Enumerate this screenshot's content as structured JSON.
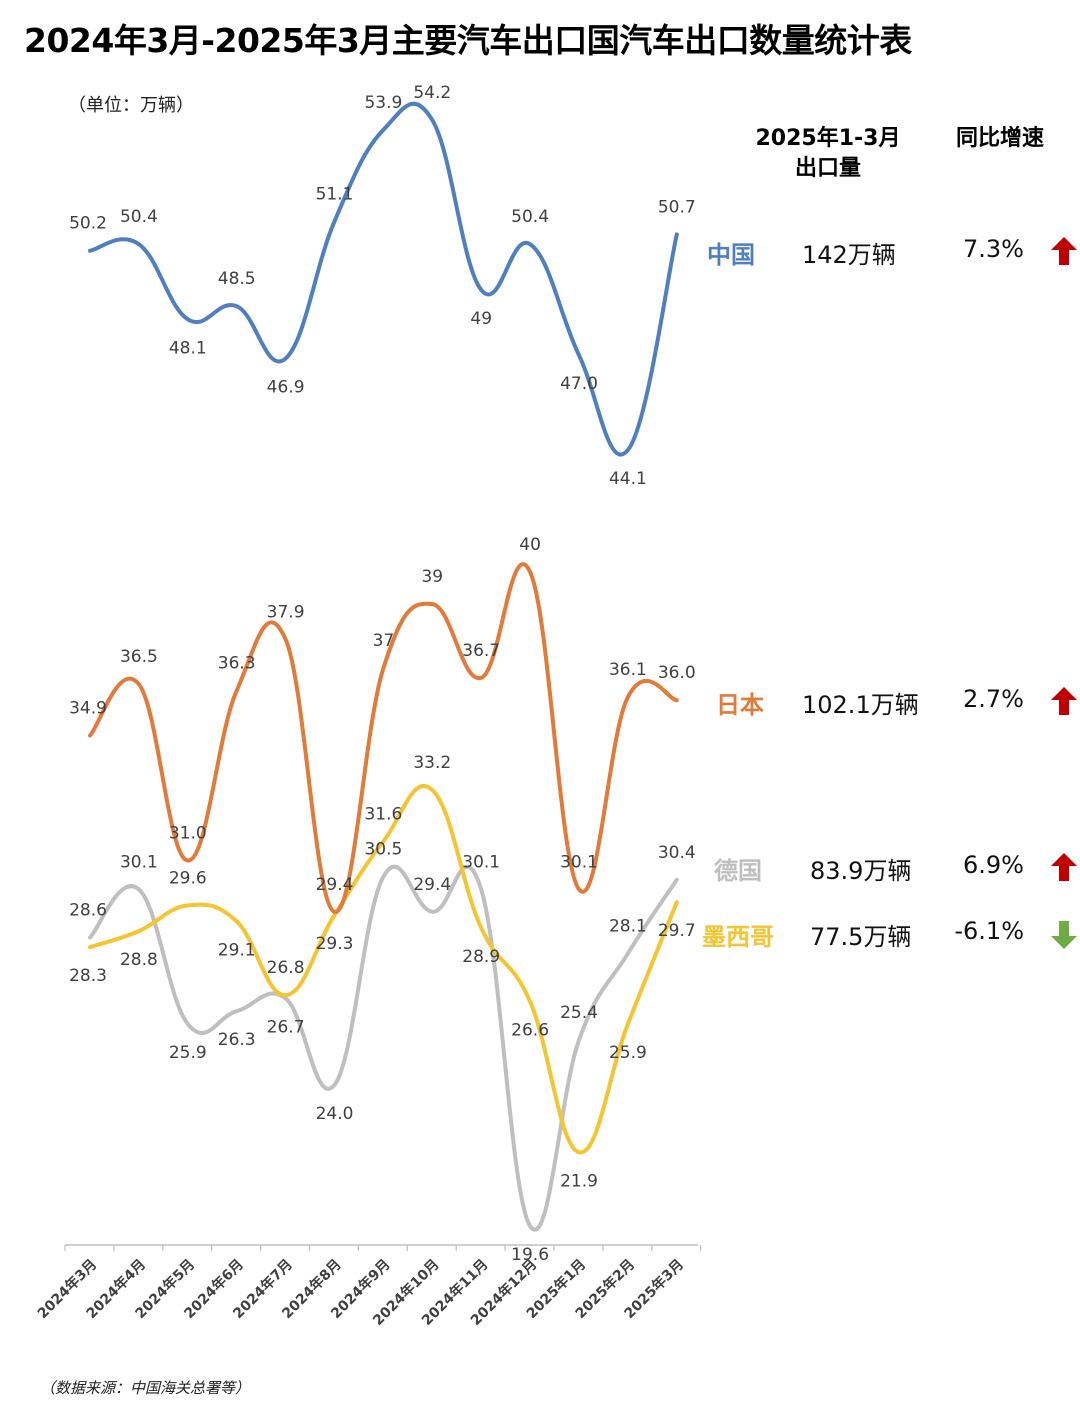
{
  "title": "2024年3月-2025年3月主要汽车出口国汽车出口数量统计表",
  "unit_label": "（单位：万辆）",
  "source_note": "（数据来源：中国海关总署等）",
  "table": {
    "col_export_line1": "2025年1-3月",
    "col_export_line2": "出口量",
    "col_growth": "同比增速",
    "rows": [
      {
        "country": "中国",
        "export": "142万辆",
        "growth": "7.3%",
        "direction": "up",
        "color": "#4f7fbf"
      },
      {
        "country": "日本",
        "export": "102.1万辆",
        "growth": "2.7%",
        "direction": "up",
        "color": "#e27a3a"
      },
      {
        "country": "德国",
        "export": "83.9万辆",
        "growth": "6.9%",
        "direction": "up",
        "color": "#bfbfbf"
      },
      {
        "country": "墨西哥",
        "export": "77.5万辆",
        "growth": "-6.1%",
        "direction": "down",
        "color": "#f5c431"
      }
    ]
  },
  "colors": {
    "up_arrow": "#c00000",
    "down_arrow": "#6fac46"
  },
  "chart_data": {
    "type": "line",
    "categories": [
      "2024年3月",
      "2024年4月",
      "2024年5月",
      "2024年6月",
      "2024年7月",
      "2024年8月",
      "2024年9月",
      "2024年10月",
      "2024年11月",
      "2024年12月",
      "2025年1月",
      "2025年2月",
      "2025年3月"
    ],
    "series": [
      {
        "name": "中国",
        "color": "#4f7fbf",
        "values": [
          50.2,
          50.4,
          48.1,
          48.5,
          46.9,
          51.1,
          53.9,
          54.2,
          49,
          50.4,
          47.0,
          44.1,
          50.7
        ],
        "labels": [
          "50.2",
          "50.4",
          "48.1",
          "48.5",
          "46.9",
          "51.1",
          "53.9",
          "54.2",
          "49",
          "50.4",
          "47.0",
          "44.1",
          "50.7"
        ]
      },
      {
        "name": "日本",
        "color": "#e27a3a",
        "values": [
          34.9,
          36.5,
          31.0,
          36.3,
          37.9,
          29.4,
          37,
          39,
          36.7,
          40,
          30.1,
          36.1,
          36.0
        ],
        "labels": [
          "34.9",
          "36.5",
          "31.0",
          "36.3",
          "37.9",
          "29.4",
          "37",
          "39",
          "36.7",
          "40",
          "30.1",
          "36.1",
          "36.0"
        ]
      },
      {
        "name": "德国",
        "color": "#bfbfbf",
        "values": [
          28.6,
          30.1,
          25.9,
          26.3,
          26.7,
          24.0,
          30.5,
          29.4,
          30.1,
          19.6,
          25.4,
          28.1,
          30.4
        ],
        "labels": [
          "28.6",
          "30.1",
          "25.9",
          "26.3",
          "26.7",
          "24.0",
          "30.5",
          "29.4",
          "30.1",
          "19.6",
          "25.4",
          "28.1",
          "30.4"
        ]
      },
      {
        "name": "墨西哥",
        "color": "#f5c431",
        "values": [
          28.3,
          28.8,
          29.6,
          29.1,
          26.8,
          29.3,
          31.6,
          33.2,
          28.9,
          26.6,
          21.9,
          25.9,
          29.7
        ],
        "labels": [
          "28.3",
          "28.8",
          "29.6",
          "29.1",
          "26.8",
          "29.3",
          "31.6",
          "33.2",
          "28.9",
          "26.6",
          "21.9",
          "25.9",
          "29.7"
        ]
      }
    ]
  }
}
